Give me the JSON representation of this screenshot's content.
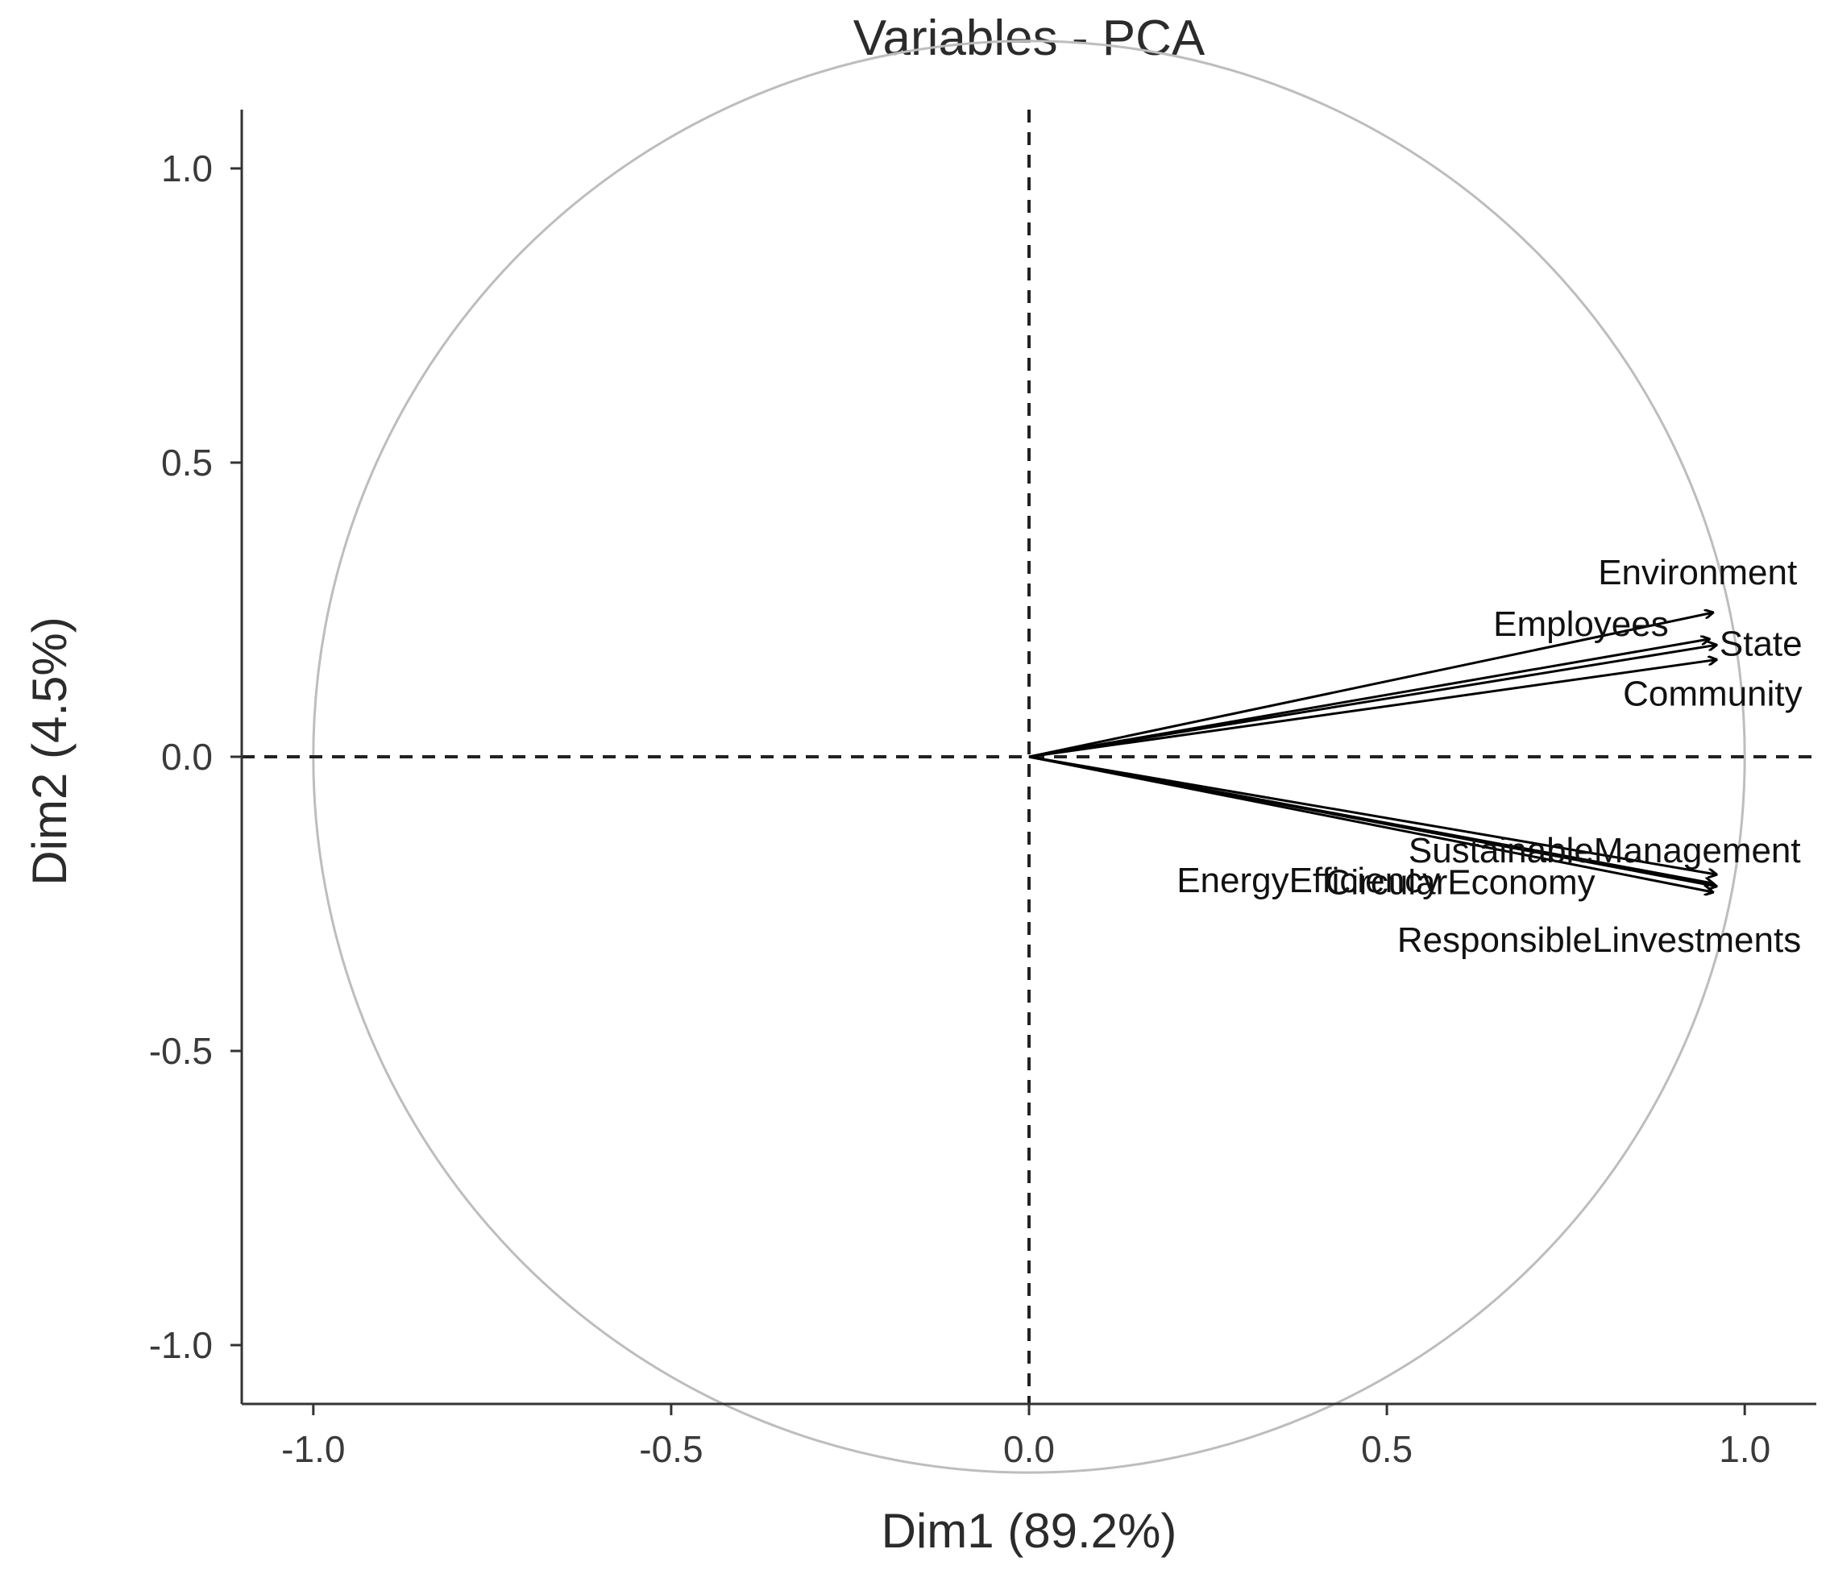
{
  "chart_data": {
    "type": "scatter",
    "subtype": "pca-correlation-circle",
    "title": "Variables - PCA",
    "xlabel": "Dim1 (89.2%)",
    "ylabel": "Dim2 (4.5%)",
    "xlim": [
      -1.1,
      1.1
    ],
    "ylim": [
      -1.1,
      1.1
    ],
    "x_ticks": [
      -1.0,
      -0.5,
      0.0,
      0.5,
      1.0
    ],
    "x_tick_labels": [
      "-1.0",
      "-0.5",
      "0.0",
      "0.5",
      "1.0"
    ],
    "y_ticks": [
      1.0,
      0.5,
      0.0,
      -0.5,
      -1.0
    ],
    "y_tick_labels": [
      "1.0",
      "0.5",
      "0.0",
      "-0.5",
      "-1.0"
    ],
    "grid": false,
    "unit_circle": true,
    "reference_lines": {
      "x": 0,
      "y": 0,
      "style": "dashed"
    },
    "variables": [
      {
        "name": "Environment",
        "x": 0.955,
        "y": 0.245
      },
      {
        "name": "Employees",
        "x": 0.95,
        "y": 0.2
      },
      {
        "name": "State",
        "x": 0.96,
        "y": 0.19
      },
      {
        "name": "Community",
        "x": 0.96,
        "y": 0.165
      },
      {
        "name": "SustainableManagement",
        "x": 0.96,
        "y": -0.2
      },
      {
        "name": "EnergyEfficiency",
        "x": 0.955,
        "y": -0.215
      },
      {
        "name": "CircularEconomy",
        "x": 0.96,
        "y": -0.22
      },
      {
        "name": "ResponsibleLinvestments",
        "x": 0.955,
        "y": -0.23
      }
    ],
    "colors": {
      "arrow": "#000000",
      "circle": "#bdbdbd",
      "axis": "#333333"
    }
  }
}
